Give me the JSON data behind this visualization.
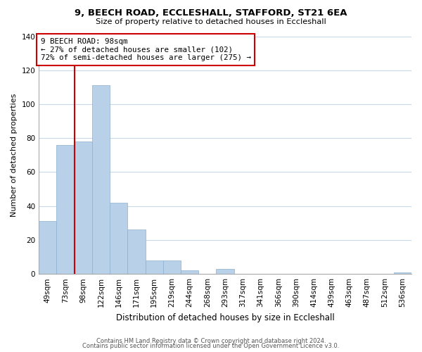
{
  "title": "9, BEECH ROAD, ECCLESHALL, STAFFORD, ST21 6EA",
  "subtitle": "Size of property relative to detached houses in Eccleshall",
  "xlabel": "Distribution of detached houses by size in Eccleshall",
  "ylabel": "Number of detached properties",
  "bar_labels": [
    "49sqm",
    "73sqm",
    "98sqm",
    "122sqm",
    "146sqm",
    "171sqm",
    "195sqm",
    "219sqm",
    "244sqm",
    "268sqm",
    "293sqm",
    "317sqm",
    "341sqm",
    "366sqm",
    "390sqm",
    "414sqm",
    "439sqm",
    "463sqm",
    "487sqm",
    "512sqm",
    "536sqm"
  ],
  "bar_values": [
    31,
    76,
    78,
    111,
    42,
    26,
    8,
    8,
    2,
    0,
    3,
    0,
    0,
    0,
    0,
    0,
    0,
    0,
    0,
    0,
    1
  ],
  "bar_color": "#b8d0e8",
  "bar_edge_color": "#8ab0d0",
  "reference_line_color": "#cc0000",
  "ylim": [
    0,
    140
  ],
  "yticks": [
    0,
    20,
    40,
    60,
    80,
    100,
    120,
    140
  ],
  "annotation_box_text": "9 BEECH ROAD: 98sqm\n← 27% of detached houses are smaller (102)\n72% of semi-detached houses are larger (275) →",
  "annotation_box_color": "#cc0000",
  "footer_line1": "Contains HM Land Registry data © Crown copyright and database right 2024.",
  "footer_line2": "Contains public sector information licensed under the Open Government Licence v3.0.",
  "background_color": "#ffffff",
  "grid_color": "#c8d8e8"
}
